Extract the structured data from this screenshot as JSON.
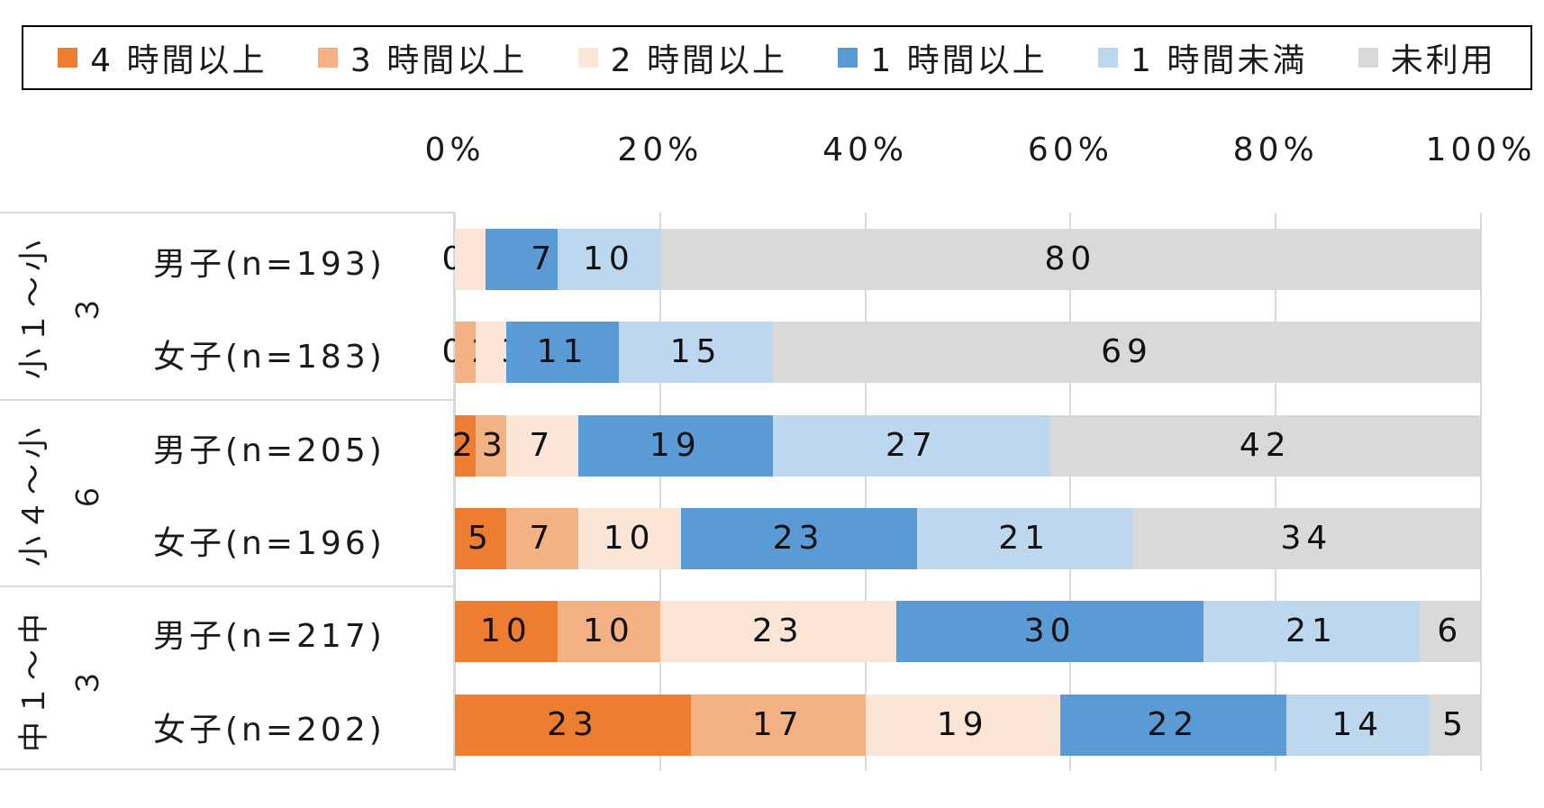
{
  "chart_data": {
    "type": "bar",
    "orientation": "horizontal",
    "stacked": "percent",
    "legend_position": "top",
    "grid": true,
    "xlim": [
      0,
      100
    ],
    "x_ticks": [
      "0%",
      "20%",
      "40%",
      "60%",
      "80%",
      "100%"
    ],
    "groups": [
      {
        "label": "小１～小３",
        "rows": [
          "男子(n=193)",
          "女子(n=183)"
        ]
      },
      {
        "label": "小４～小６",
        "rows": [
          "男子(n=205)",
          "女子(n=196)"
        ]
      },
      {
        "label": "中１～中３",
        "rows": [
          "男子(n=217)",
          "女子(n=202)"
        ]
      }
    ],
    "series": [
      {
        "name": "4 時間以上",
        "color": "#ED7D31",
        "values": [
          0,
          0,
          2,
          5,
          10,
          23
        ]
      },
      {
        "name": "3 時間以上",
        "color": "#F4B183",
        "values": [
          0,
          2,
          3,
          7,
          10,
          17
        ]
      },
      {
        "name": "2 時間以上",
        "color": "#FBE5D6",
        "values": [
          3,
          3,
          7,
          10,
          23,
          19
        ]
      },
      {
        "name": "1 時間以上",
        "color": "#5B9BD5",
        "values": [
          7,
          11,
          19,
          23,
          30,
          22
        ]
      },
      {
        "name": "1 時間未満",
        "color": "#BDD7EE",
        "values": [
          10,
          15,
          27,
          21,
          21,
          14
        ]
      },
      {
        "name": "未利用",
        "color": "#D9D9D9",
        "values": [
          80,
          69,
          42,
          34,
          6,
          5
        ]
      }
    ]
  }
}
